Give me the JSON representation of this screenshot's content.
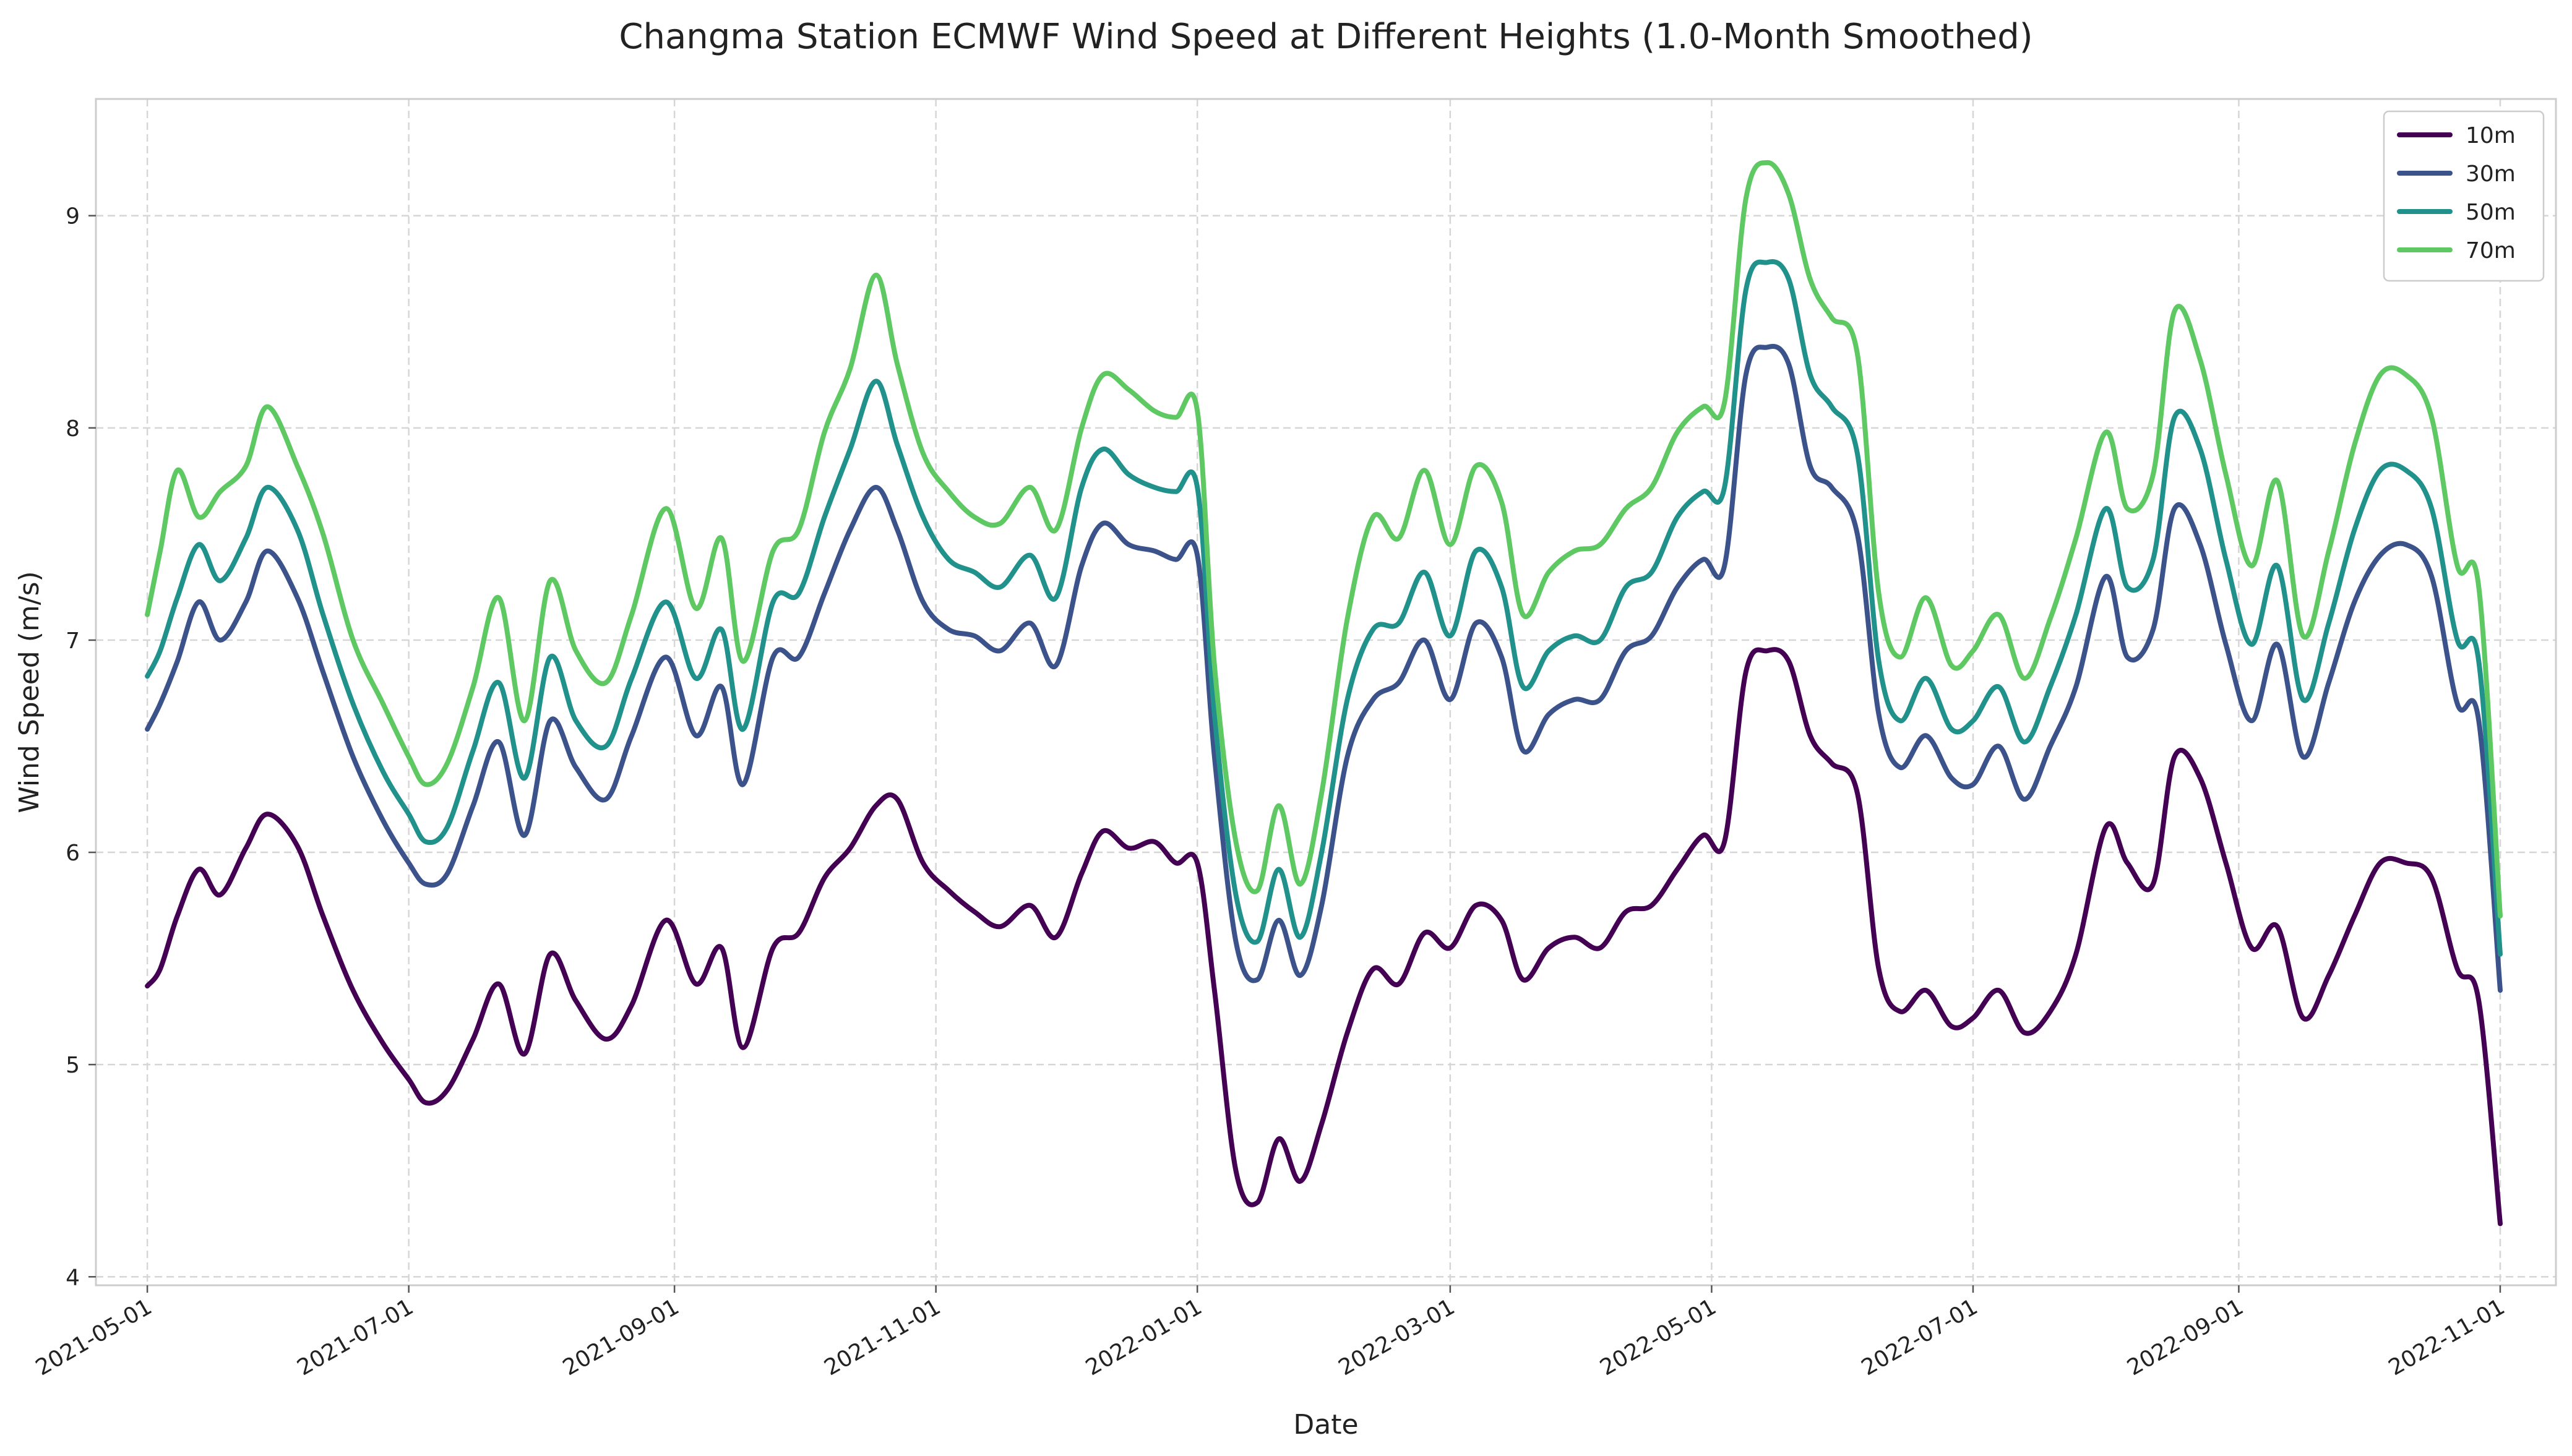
{
  "chart_data": {
    "type": "line",
    "title": "Changma Station ECMWF Wind Speed at Different Heights (1.0-Month Smoothed)",
    "xlabel": "Date",
    "ylabel": "Wind Speed (m/s)",
    "xlim": [
      "2021-04-19",
      "2022-11-14"
    ],
    "ylim": [
      3.96,
      9.55
    ],
    "x_ticks": [
      "2021-05-01",
      "2021-07-01",
      "2021-09-01",
      "2021-11-01",
      "2022-01-01",
      "2022-03-01",
      "2022-05-01",
      "2022-07-01",
      "2022-09-01",
      "2022-11-01"
    ],
    "y_ticks": [
      4,
      5,
      6,
      7,
      8,
      9
    ],
    "grid": true,
    "legend_position": "top-right",
    "x": [
      "2021-05-01",
      "2021-05-04",
      "2021-05-08",
      "2021-05-13",
      "2021-05-18",
      "2021-05-24",
      "2021-05-29",
      "2021-06-05",
      "2021-06-11",
      "2021-06-18",
      "2021-06-25",
      "2021-07-01",
      "2021-07-05",
      "2021-07-10",
      "2021-07-16",
      "2021-07-22",
      "2021-07-28",
      "2021-08-03",
      "2021-08-09",
      "2021-08-16",
      "2021-08-22",
      "2021-08-30",
      "2021-09-06",
      "2021-09-12",
      "2021-09-17",
      "2021-09-24",
      "2021-09-30",
      "2021-10-06",
      "2021-10-12",
      "2021-10-18",
      "2021-10-23",
      "2021-10-29",
      "2021-11-04",
      "2021-11-10",
      "2021-11-16",
      "2021-11-23",
      "2021-11-29",
      "2021-12-05",
      "2021-12-10",
      "2021-12-16",
      "2021-12-22",
      "2021-12-27",
      "2022-01-01",
      "2022-01-05",
      "2022-01-10",
      "2022-01-15",
      "2022-01-20",
      "2022-01-25",
      "2022-01-30",
      "2022-02-05",
      "2022-02-11",
      "2022-02-17",
      "2022-02-23",
      "2022-03-01",
      "2022-03-07",
      "2022-03-13",
      "2022-03-18",
      "2022-03-24",
      "2022-03-30",
      "2022-04-05",
      "2022-04-11",
      "2022-04-17",
      "2022-04-23",
      "2022-04-29",
      "2022-05-04",
      "2022-05-09",
      "2022-05-14",
      "2022-05-19",
      "2022-05-24",
      "2022-05-29",
      "2022-06-04",
      "2022-06-09",
      "2022-06-14",
      "2022-06-20",
      "2022-06-26",
      "2022-07-01",
      "2022-07-07",
      "2022-07-13",
      "2022-07-19",
      "2022-07-25",
      "2022-08-01",
      "2022-08-06",
      "2022-08-12",
      "2022-08-17",
      "2022-08-23",
      "2022-08-29",
      "2022-09-04",
      "2022-09-10",
      "2022-09-16",
      "2022-09-22",
      "2022-09-28",
      "2022-10-04",
      "2022-10-10",
      "2022-10-16",
      "2022-10-22",
      "2022-10-27",
      "2022-11-01"
    ],
    "series": [
      {
        "name": "10m",
        "color": "#440154",
        "values": [
          5.37,
          5.45,
          5.7,
          5.92,
          5.8,
          6.02,
          6.18,
          6.03,
          5.7,
          5.35,
          5.1,
          4.93,
          4.82,
          4.88,
          5.12,
          5.38,
          5.05,
          5.52,
          5.3,
          5.12,
          5.28,
          5.68,
          5.38,
          5.55,
          5.08,
          5.55,
          5.62,
          5.88,
          6.02,
          6.22,
          6.25,
          5.95,
          5.82,
          5.72,
          5.65,
          5.75,
          5.6,
          5.9,
          6.1,
          6.02,
          6.05,
          5.95,
          5.95,
          5.35,
          4.5,
          4.35,
          4.65,
          4.45,
          4.72,
          5.15,
          5.45,
          5.38,
          5.62,
          5.55,
          5.75,
          5.68,
          5.4,
          5.55,
          5.6,
          5.55,
          5.72,
          5.75,
          5.92,
          6.08,
          6.05,
          6.85,
          6.95,
          6.9,
          6.55,
          6.42,
          6.28,
          5.45,
          5.25,
          5.35,
          5.18,
          5.22,
          5.35,
          5.15,
          5.25,
          5.52,
          6.12,
          5.95,
          5.85,
          6.45,
          6.35,
          5.95,
          5.55,
          5.65,
          5.22,
          5.42,
          5.7,
          5.95,
          5.95,
          5.88,
          5.45,
          5.3,
          4.25
        ]
      },
      {
        "name": "30m",
        "color": "#3b528b",
        "values": [
          6.58,
          6.7,
          6.9,
          7.18,
          7.0,
          7.18,
          7.42,
          7.2,
          6.85,
          6.45,
          6.15,
          5.95,
          5.85,
          5.9,
          6.22,
          6.52,
          6.08,
          6.62,
          6.4,
          6.25,
          6.55,
          6.92,
          6.55,
          6.78,
          6.32,
          6.92,
          6.92,
          7.22,
          7.52,
          7.72,
          7.52,
          7.18,
          7.05,
          7.02,
          6.95,
          7.08,
          6.88,
          7.35,
          7.55,
          7.45,
          7.42,
          7.38,
          7.4,
          6.45,
          5.58,
          5.4,
          5.68,
          5.42,
          5.75,
          6.45,
          6.72,
          6.8,
          7.0,
          6.72,
          7.08,
          6.92,
          6.48,
          6.65,
          6.72,
          6.72,
          6.95,
          7.02,
          7.25,
          7.38,
          7.35,
          8.25,
          8.38,
          8.3,
          7.82,
          7.72,
          7.5,
          6.65,
          6.4,
          6.55,
          6.35,
          6.32,
          6.5,
          6.25,
          6.5,
          6.78,
          7.3,
          6.92,
          7.05,
          7.62,
          7.45,
          6.98,
          6.62,
          6.98,
          6.45,
          6.8,
          7.18,
          7.4,
          7.45,
          7.3,
          6.7,
          6.62,
          5.35
        ]
      },
      {
        "name": "50m",
        "color": "#21918c",
        "values": [
          6.83,
          6.95,
          7.2,
          7.45,
          7.28,
          7.48,
          7.72,
          7.52,
          7.12,
          6.7,
          6.38,
          6.18,
          6.05,
          6.12,
          6.48,
          6.8,
          6.35,
          6.92,
          6.62,
          6.5,
          6.82,
          7.18,
          6.82,
          7.05,
          6.58,
          7.18,
          7.22,
          7.58,
          7.9,
          8.22,
          7.92,
          7.58,
          7.38,
          7.32,
          7.25,
          7.4,
          7.2,
          7.72,
          7.9,
          7.78,
          7.72,
          7.7,
          7.72,
          6.65,
          5.8,
          5.58,
          5.92,
          5.6,
          6.0,
          6.72,
          7.05,
          7.08,
          7.32,
          7.02,
          7.42,
          7.25,
          6.78,
          6.95,
          7.02,
          7.0,
          7.25,
          7.32,
          7.58,
          7.7,
          7.72,
          8.65,
          8.78,
          8.7,
          8.25,
          8.1,
          7.88,
          6.9,
          6.62,
          6.82,
          6.58,
          6.62,
          6.78,
          6.52,
          6.78,
          7.12,
          7.62,
          7.25,
          7.38,
          8.05,
          7.9,
          7.38,
          6.98,
          7.35,
          6.72,
          7.08,
          7.52,
          7.8,
          7.8,
          7.62,
          7.0,
          6.9,
          5.52
        ]
      },
      {
        "name": "70m",
        "color": "#5ec962",
        "values": [
          7.12,
          7.42,
          7.8,
          7.58,
          7.7,
          7.82,
          8.1,
          7.82,
          7.5,
          7.0,
          6.7,
          6.45,
          6.32,
          6.42,
          6.78,
          7.2,
          6.62,
          7.28,
          6.95,
          6.8,
          7.12,
          7.62,
          7.15,
          7.48,
          6.9,
          7.42,
          7.52,
          7.98,
          8.28,
          8.72,
          8.3,
          7.88,
          7.7,
          7.58,
          7.55,
          7.72,
          7.52,
          8.0,
          8.25,
          8.18,
          8.08,
          8.05,
          8.08,
          6.88,
          6.05,
          5.82,
          6.22,
          5.85,
          6.28,
          7.1,
          7.58,
          7.48,
          7.8,
          7.45,
          7.82,
          7.65,
          7.12,
          7.32,
          7.42,
          7.45,
          7.62,
          7.72,
          7.98,
          8.1,
          8.12,
          9.08,
          9.25,
          9.1,
          8.7,
          8.52,
          8.35,
          7.22,
          6.92,
          7.2,
          6.88,
          6.95,
          7.12,
          6.82,
          7.1,
          7.48,
          7.98,
          7.62,
          7.78,
          8.55,
          8.32,
          7.78,
          7.35,
          7.75,
          7.02,
          7.42,
          7.92,
          8.25,
          8.25,
          8.05,
          7.35,
          7.25,
          5.7
        ]
      }
    ]
  }
}
